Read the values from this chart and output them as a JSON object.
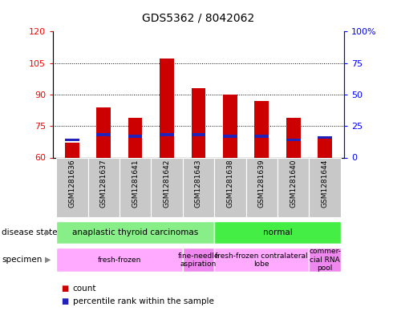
{
  "title": "GDS5362 / 8042062",
  "samples": [
    "GSM1281636",
    "GSM1281637",
    "GSM1281641",
    "GSM1281642",
    "GSM1281643",
    "GSM1281638",
    "GSM1281639",
    "GSM1281640",
    "GSM1281644"
  ],
  "counts": [
    67,
    84,
    79,
    107,
    93,
    90,
    87,
    79,
    70
  ],
  "percentile_ranks_pct": [
    14,
    18,
    17,
    18,
    18,
    17,
    17,
    14,
    16
  ],
  "ylim_left": [
    60,
    120
  ],
  "ylim_right": [
    0,
    100
  ],
  "yticks_left": [
    60,
    75,
    90,
    105,
    120
  ],
  "yticks_right": [
    0,
    25,
    50,
    75,
    100
  ],
  "bar_color": "#cc0000",
  "marker_color": "#2222bb",
  "bar_width": 0.45,
  "disease_groups": [
    {
      "label": "anaplastic thyroid carcinomas",
      "start": 0,
      "end": 5,
      "color": "#88ee88"
    },
    {
      "label": "normal",
      "start": 5,
      "end": 9,
      "color": "#44ee44"
    }
  ],
  "specimen_groups": [
    {
      "label": "fresh-frozen",
      "start": 0,
      "end": 4,
      "color": "#ffaaff"
    },
    {
      "label": "fine-needle\naspiration",
      "start": 4,
      "end": 5,
      "color": "#ee88ee"
    },
    {
      "label": "fresh-frozen contralateral\nlobe",
      "start": 5,
      "end": 8,
      "color": "#ffaaff"
    },
    {
      "label": "commer-\ncial RNA\npool",
      "start": 8,
      "end": 9,
      "color": "#ee88ee"
    }
  ]
}
